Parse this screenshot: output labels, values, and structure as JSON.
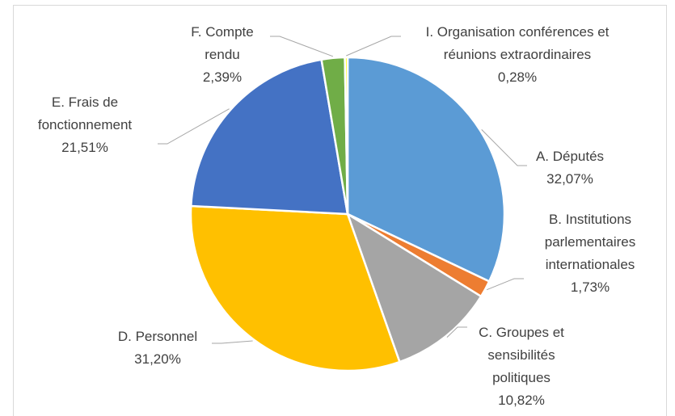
{
  "chart_data": {
    "type": "pie",
    "categories": [
      "A. Députés",
      "B. Institutions parlementaires internationales",
      "C. Groupes et sensibilités politiques",
      "D. Personnel",
      "E. Frais de fonctionnement",
      "F. Compte rendu",
      "I. Organisation conférences et réunions extraordinaires"
    ],
    "values": [
      32.07,
      1.73,
      10.82,
      31.2,
      21.51,
      2.39,
      0.28
    ],
    "value_labels": [
      "32,07%",
      "1,73%",
      "10,82%",
      "31,20%",
      "21,51%",
      "2,39%",
      "0,28%"
    ],
    "colors": [
      "#5b9bd5",
      "#ed7d31",
      "#a5a5a5",
      "#ffc000",
      "#4472c4",
      "#70ad47",
      "#ffff00"
    ]
  }
}
